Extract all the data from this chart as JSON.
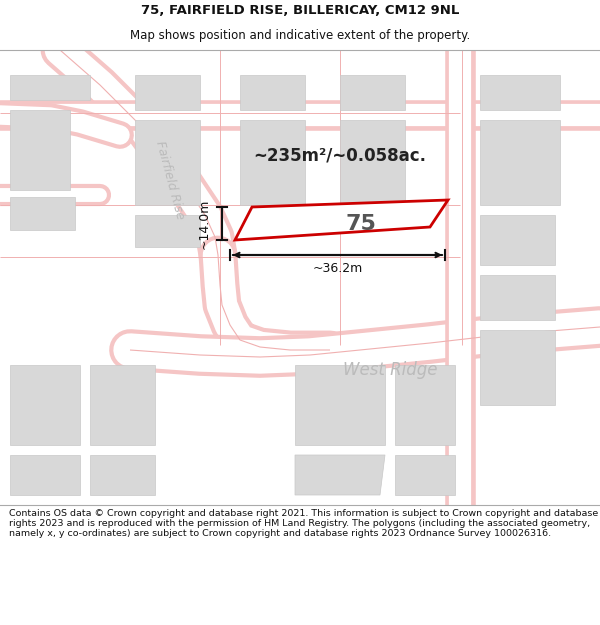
{
  "title_line1": "75, FAIRFIELD RISE, BILLERICAY, CM12 9NL",
  "title_line2": "Map shows position and indicative extent of the property.",
  "area_text": "~235m²/~0.058ac.",
  "property_number": "75",
  "dim_width": "~36.2m",
  "dim_height": "~14.0m",
  "street_name1": "Fairfield Rise",
  "street_name2": "West Ridge",
  "footer_text": "Contains OS data © Crown copyright and database right 2021. This information is subject to Crown copyright and database rights 2023 and is reproduced with the permission of HM Land Registry. The polygons (including the associated geometry, namely x, y co-ordinates) are subject to Crown copyright and database rights 2023 Ordnance Survey 100026316.",
  "map_bg": "#ffffff",
  "road_color": "#f5c5c5",
  "road_fill": "#ffffff",
  "plot_edge_color": "#cc0000",
  "block_fill_color": "#d8d8d8",
  "block_edge_color": "#c8c8c8",
  "thin_line_color": "#f0b0b0",
  "dim_line_color": "#111111",
  "area_text_color": "#222222",
  "street_color": "#bbbbbb",
  "footer_bg": "#ffffff",
  "title_color": "#111111",
  "prop_num_color": "#555555"
}
